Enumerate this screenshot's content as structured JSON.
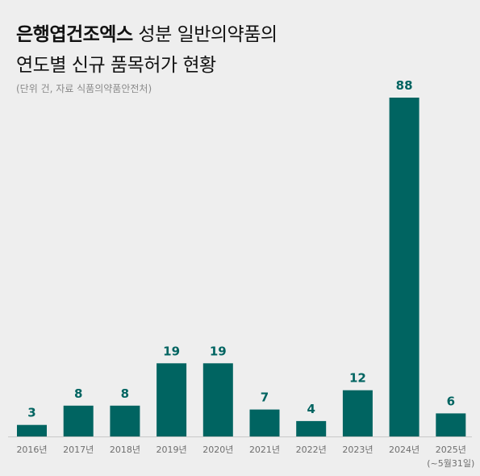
{
  "header": {
    "title_bold": "은행엽건조엑스",
    "title_rest_line1": " 성분 일반의약품의",
    "title_line2": "연도별 신규 품목허가 현황",
    "source": "(단위 건, 자료 식품의약품안전처)"
  },
  "colors": {
    "bar": "#006461",
    "label": "#006461",
    "background": "#eeeeee"
  },
  "chart_data": {
    "type": "bar",
    "title": "은행엽건조엑스 성분 일반의약품의 연도별 신규 품목허가 현황",
    "categories": [
      "2016년",
      "2017년",
      "2018년",
      "2019년",
      "2020년",
      "2021년",
      "2022년",
      "2023년",
      "2024년",
      "2025년"
    ],
    "category_notes": [
      "",
      "",
      "",
      "",
      "",
      "",
      "",
      "",
      "",
      "(~5월31일)"
    ],
    "values": [
      3,
      8,
      8,
      19,
      19,
      7,
      4,
      12,
      88,
      6
    ],
    "ylim": [
      0,
      88
    ],
    "grid": false,
    "legend": "none"
  }
}
